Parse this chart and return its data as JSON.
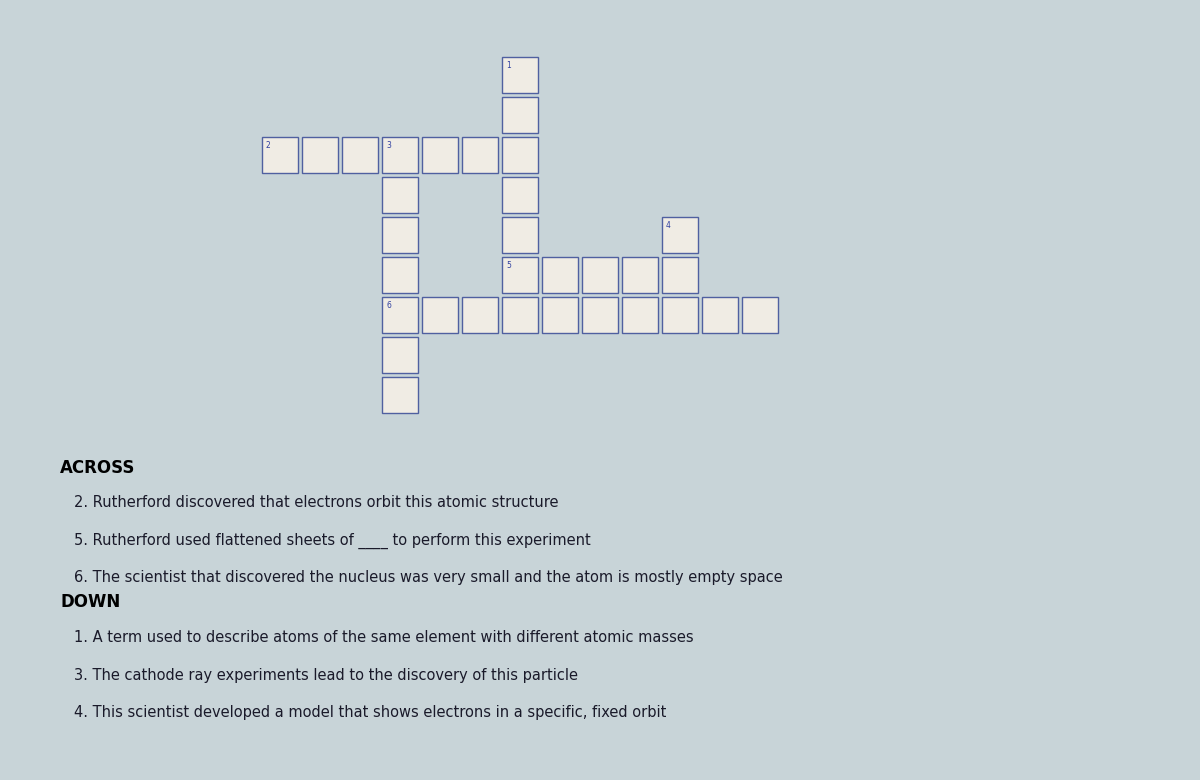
{
  "background_color": "#c8d4d8",
  "cell_color": "#f0ece4",
  "cell_edge_color": "#5060a0",
  "clue_number_color": "#3040a0",
  "text_color": "#1a1a2a",
  "title_color": "#000000",
  "figsize": [
    12.0,
    7.8
  ],
  "dpi": 100,
  "clue_number_fontsize": 5.5,
  "clue_fontsize": 10.5,
  "title_fontsize": 12,
  "clues_across": [
    "2. Rutherford discovered that electrons orbit this atomic structure",
    "5. Rutherford used flattened sheets of ____ to perform this experiment",
    "6. The scientist that discovered the nucleus was very small and the atom is mostly empty space"
  ],
  "clues_down": [
    "1. A term used to describe atoms of the same element with different atomic masses",
    "3. The cathode ray experiments lead to the discovery of this particle",
    "4. This scientist developed a model that shows electrons in a specific, fixed orbit"
  ],
  "cells": [
    {
      "col": 6,
      "row": 0,
      "number": "1"
    },
    {
      "col": 6,
      "row": 1,
      "number": null
    },
    {
      "col": 0,
      "row": 2,
      "number": "2"
    },
    {
      "col": 1,
      "row": 2,
      "number": null
    },
    {
      "col": 2,
      "row": 2,
      "number": null
    },
    {
      "col": 3,
      "row": 2,
      "number": "3"
    },
    {
      "col": 4,
      "row": 2,
      "number": null
    },
    {
      "col": 5,
      "row": 2,
      "number": null
    },
    {
      "col": 6,
      "row": 2,
      "number": null
    },
    {
      "col": 3,
      "row": 3,
      "number": null
    },
    {
      "col": 6,
      "row": 3,
      "number": null
    },
    {
      "col": 3,
      "row": 4,
      "number": null
    },
    {
      "col": 6,
      "row": 4,
      "number": null
    },
    {
      "col": 10,
      "row": 4,
      "number": "4"
    },
    {
      "col": 3,
      "row": 5,
      "number": null
    },
    {
      "col": 6,
      "row": 5,
      "number": "5"
    },
    {
      "col": 7,
      "row": 5,
      "number": null
    },
    {
      "col": 8,
      "row": 5,
      "number": null
    },
    {
      "col": 9,
      "row": 5,
      "number": null
    },
    {
      "col": 10,
      "row": 5,
      "number": null
    },
    {
      "col": 3,
      "row": 6,
      "number": "6"
    },
    {
      "col": 4,
      "row": 6,
      "number": null
    },
    {
      "col": 5,
      "row": 6,
      "number": null
    },
    {
      "col": 6,
      "row": 6,
      "number": null
    },
    {
      "col": 7,
      "row": 6,
      "number": null
    },
    {
      "col": 8,
      "row": 6,
      "number": null
    },
    {
      "col": 9,
      "row": 6,
      "number": null
    },
    {
      "col": 10,
      "row": 6,
      "number": null
    },
    {
      "col": 11,
      "row": 6,
      "number": null
    },
    {
      "col": 12,
      "row": 6,
      "number": null
    },
    {
      "col": 3,
      "row": 7,
      "number": null
    },
    {
      "col": 3,
      "row": 8,
      "number": null
    }
  ]
}
